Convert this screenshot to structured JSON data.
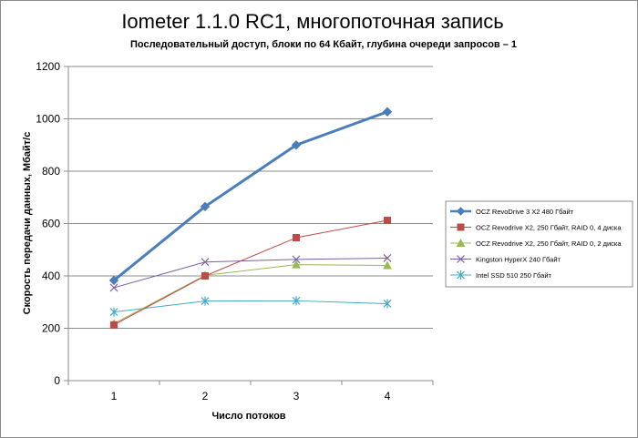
{
  "chart_data": {
    "type": "line",
    "title": "Iometer 1.1.0 RC1, многопоточная запись",
    "subtitle": "Последовательный  доступ, блоки  по 64 Кбайт,  глубина очереди запросов  – 1",
    "xlabel": "Число  потоков",
    "ylabel": "Скорость  передачи данных, Мбайт/с",
    "categories": [
      "1",
      "2",
      "3",
      "4"
    ],
    "ylim": [
      0,
      1200
    ],
    "yticks": [
      0,
      200,
      400,
      600,
      800,
      1000,
      1200
    ],
    "grid": "horizontal",
    "legend_position": "right",
    "series": [
      {
        "name": "OCZ RevoDrive 3 X2 480 Гбайт",
        "values": [
          383,
          665,
          900,
          1027
        ],
        "color": "#4a7ebb",
        "marker": "diamond",
        "width": 3
      },
      {
        "name": "OCZ Revodrive X2, 250 Гбайт, RAID 0, 4 диска",
        "values": [
          213,
          400,
          546,
          612
        ],
        "color": "#be4b48",
        "marker": "square",
        "width": 1
      },
      {
        "name": "OCZ Revodrive X2, 250 Гбайт, RAID 0, 2 диска",
        "values": [
          218,
          402,
          443,
          440
        ],
        "color": "#98b954",
        "marker": "triangle",
        "width": 1
      },
      {
        "name": "Kingston HyperX 240 Гбайт",
        "values": [
          355,
          453,
          463,
          468
        ],
        "color": "#7d60a0",
        "marker": "x",
        "width": 1
      },
      {
        "name": "Intel SSD 510 250 Гбайт",
        "values": [
          262,
          304,
          305,
          294
        ],
        "color": "#46aac5",
        "marker": "star",
        "width": 1
      }
    ]
  }
}
